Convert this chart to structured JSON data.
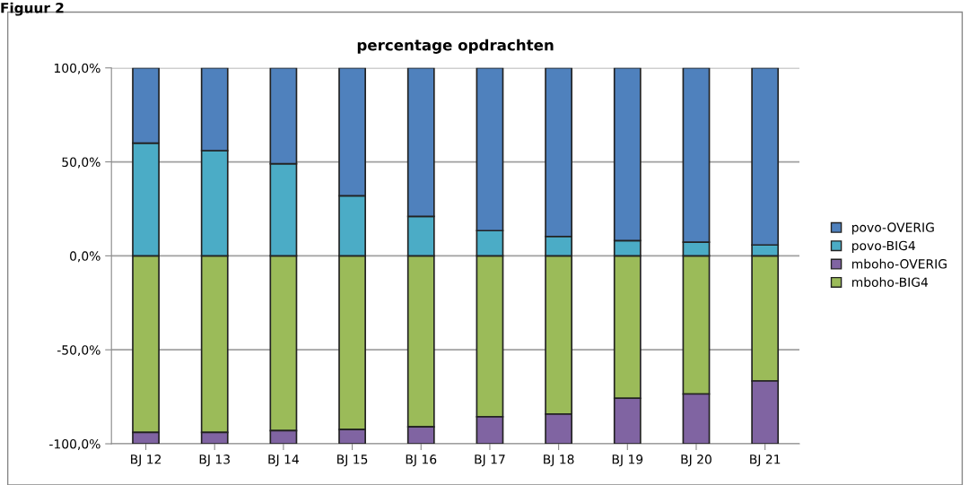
{
  "chart_data": {
    "type": "bar",
    "title": "percentage opdrachten",
    "stacked": true,
    "categories": [
      "BJ 12",
      "BJ 13",
      "BJ 14",
      "BJ 15",
      "BJ 16",
      "BJ 17",
      "BJ 18",
      "BJ 19",
      "BJ 20",
      "BJ 21"
    ],
    "series": [
      {
        "name": "mboho-BIG4",
        "color": "#9bbb59",
        "values": [
          -94,
          -94,
          -93,
          -92.4,
          -91,
          -85.6,
          -84.2,
          -75.8,
          -73.5,
          -66.6
        ]
      },
      {
        "name": "mboho-OVERIG",
        "color": "#8064a2",
        "values": [
          -6,
          -6,
          -7,
          -7.6,
          -9,
          -14.4,
          -15.8,
          -24.2,
          -26.5,
          -33.4
        ]
      },
      {
        "name": "povo-BIG4",
        "color": "#4bacc6",
        "values": [
          60,
          56,
          49,
          32,
          21,
          13.4,
          10.3,
          8.1,
          7.3,
          5.8
        ]
      },
      {
        "name": "povo-OVERIG",
        "color": "#4f81bd",
        "values": [
          40,
          44,
          51,
          68,
          79,
          86.6,
          89.7,
          91.9,
          92.7,
          94.2
        ]
      }
    ],
    "ylim": [
      -100,
      100
    ],
    "yticks": [
      {
        "value": -100,
        "label": "-100,0%"
      },
      {
        "value": -50,
        "label": "-50,0%"
      },
      {
        "value": 0,
        "label": "0,0%"
      },
      {
        "value": 50,
        "label": "50,0%"
      },
      {
        "value": 100,
        "label": "100,0%"
      }
    ],
    "grid": "y",
    "legend": "right",
    "annotations": [
      "Figuur 2"
    ]
  }
}
